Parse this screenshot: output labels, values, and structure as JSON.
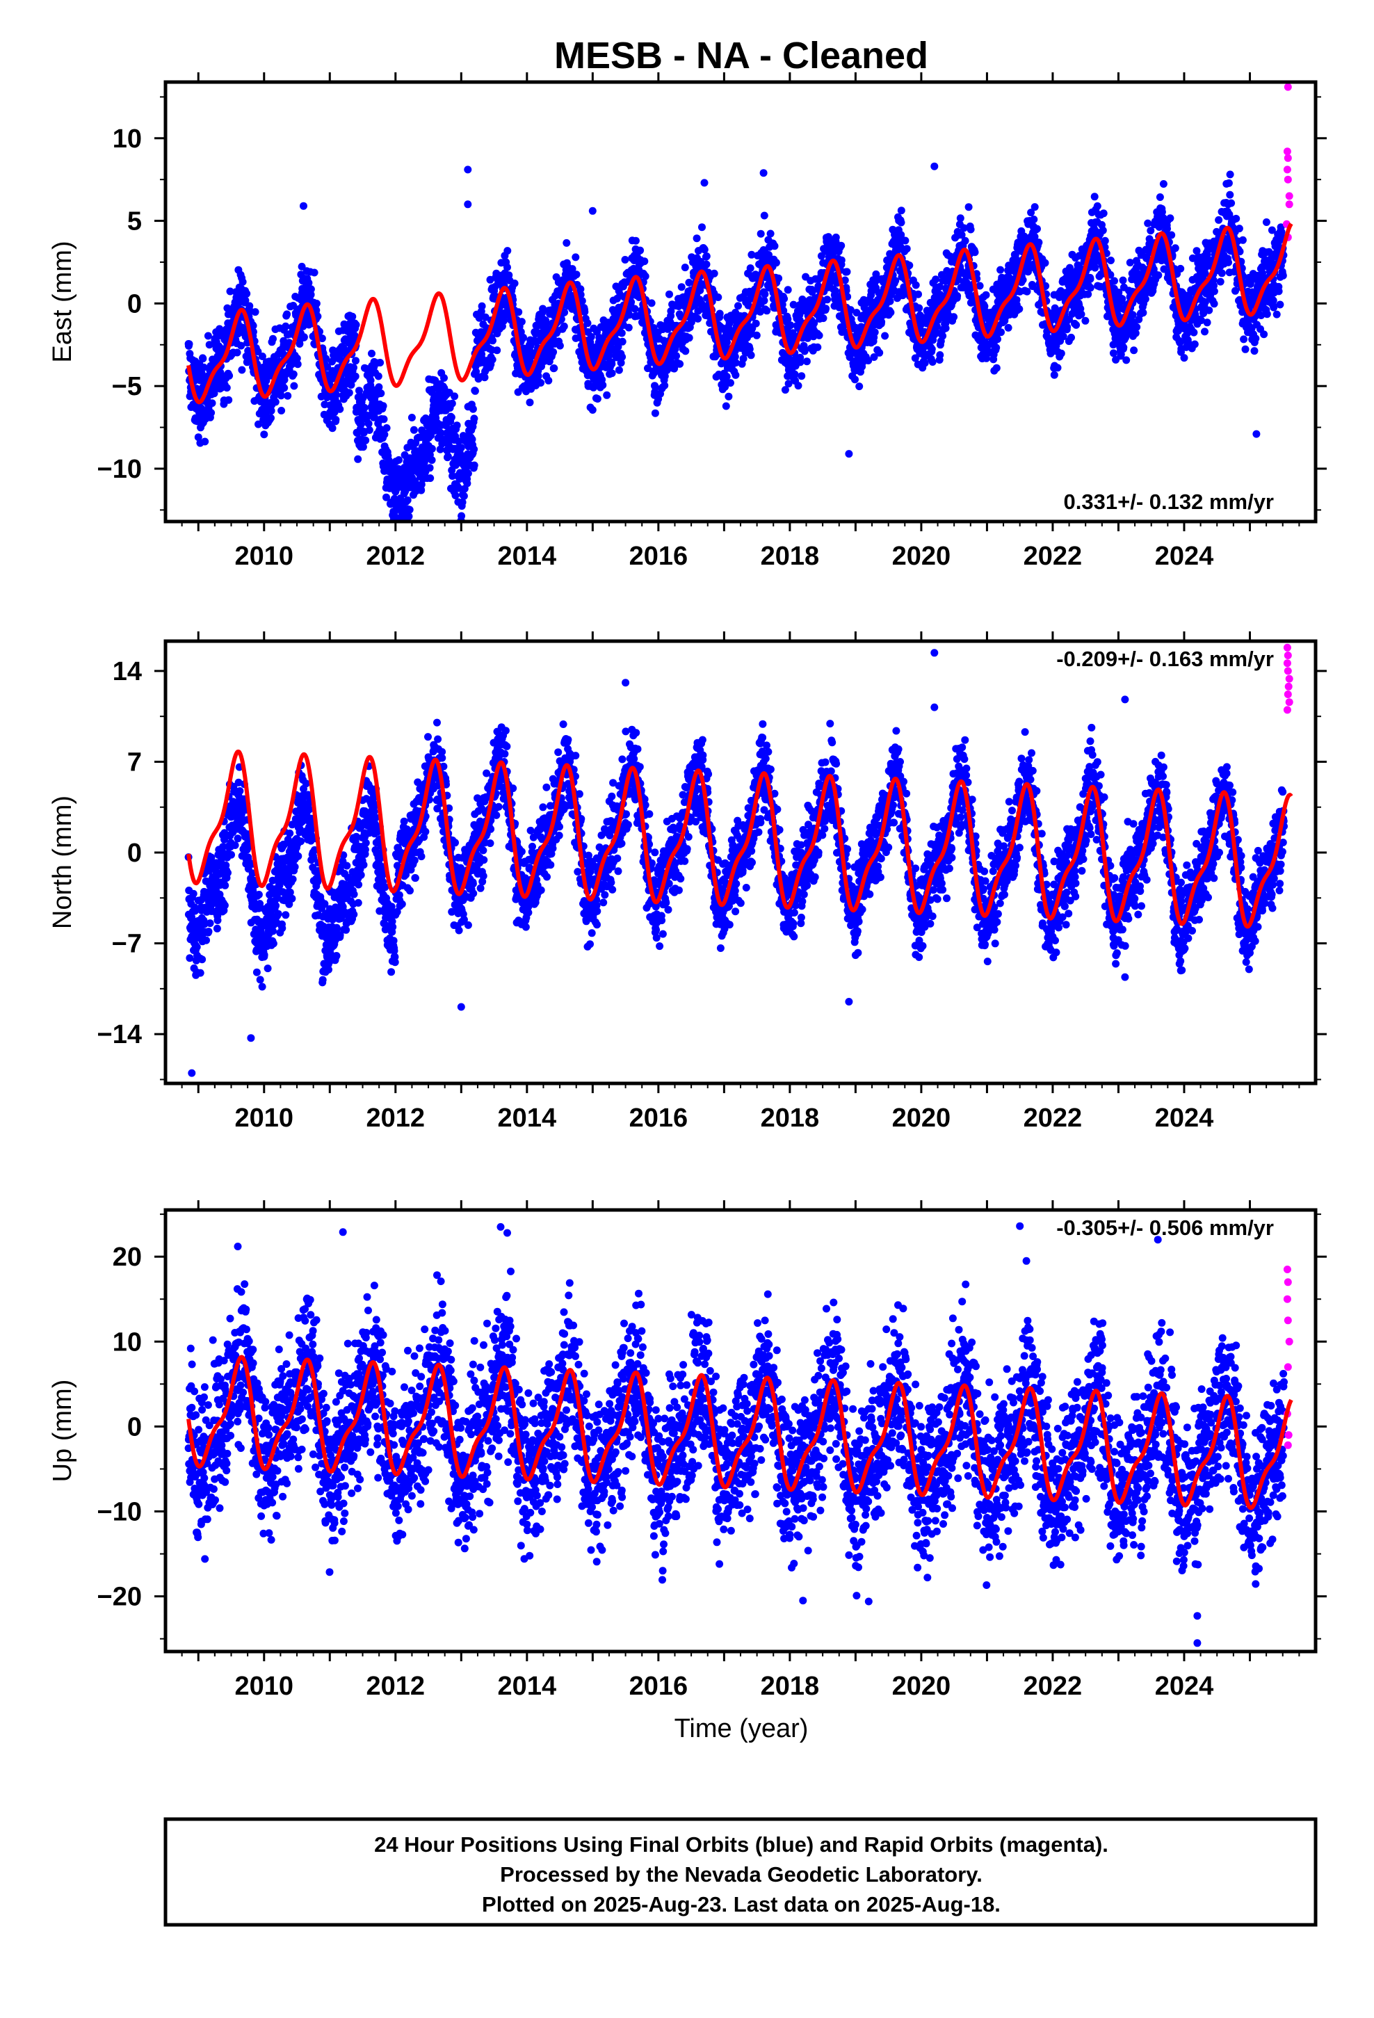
{
  "title": "MESB  - NA - Cleaned",
  "xlabel": "Time (year)",
  "colors": {
    "final": "#0000ff",
    "rapid": "#ff00ff",
    "model": "#ff0000",
    "axes": "#000000"
  },
  "chart_data": [
    {
      "type": "scatter",
      "name": "east",
      "ylabel": "East (mm)",
      "rate": "0.331+/- 0.132 mm/yr",
      "rate_position": "bottom-right",
      "xlim": [
        2008.5,
        2026.0
      ],
      "ylim": [
        -13.2,
        13.4
      ],
      "xticks": [
        2010,
        2012,
        2014,
        2016,
        2018,
        2020,
        2022,
        2024
      ],
      "yticks": [
        -10,
        -5,
        0,
        5,
        10
      ],
      "grid": false,
      "start_year": 2008.85,
      "end_year": 2025.63,
      "rapid_start_year": 2025.52,
      "series": [
        {
          "name": "Final Orbits",
          "color": "#0000ff"
        },
        {
          "name": "Rapid Orbits",
          "color": "#ff00ff"
        },
        {
          "name": "Model",
          "color": "#ff0000"
        }
      ],
      "model": {
        "trend": 0.331,
        "trend_start": -3.5,
        "amp": 2.3,
        "phase_peak": 0.6
      },
      "outliers": [
        {
          "x": 2013.1,
          "y": 8.1
        },
        {
          "x": 2013.1,
          "y": 6.0
        },
        {
          "x": 2020.2,
          "y": 8.3
        },
        {
          "x": 2018.9,
          "y": -9.1
        },
        {
          "x": 2025.1,
          "y": -7.9
        },
        {
          "x": 2010.6,
          "y": 5.9
        },
        {
          "x": 2017.6,
          "y": 7.9
        },
        {
          "x": 2016.7,
          "y": 7.3
        },
        {
          "x": 2015.0,
          "y": 5.6
        }
      ],
      "rapid_points": [
        {
          "x": 2025.58,
          "y": 13.1
        },
        {
          "x": 2025.57,
          "y": 9.2
        },
        {
          "x": 2025.58,
          "y": 8.8
        },
        {
          "x": 2025.57,
          "y": 8.1
        },
        {
          "x": 2025.58,
          "y": 7.5
        },
        {
          "x": 2025.6,
          "y": 6.5
        },
        {
          "x": 2025.6,
          "y": 6.0
        },
        {
          "x": 2025.56,
          "y": 4.8
        },
        {
          "x": 2025.58,
          "y": 4.0
        }
      ]
    },
    {
      "type": "scatter",
      "name": "north",
      "ylabel": "North (mm)",
      "rate": "-0.209+/- 0.163 mm/yr",
      "rate_position": "top-right",
      "xlim": [
        2008.5,
        2026.0
      ],
      "ylim": [
        -17.8,
        16.3
      ],
      "xticks": [
        2010,
        2012,
        2014,
        2016,
        2018,
        2020,
        2022,
        2024
      ],
      "yticks": [
        -14,
        -7,
        0,
        7,
        14
      ],
      "grid": false,
      "start_year": 2008.85,
      "end_year": 2025.63,
      "rapid_start_year": 2025.52,
      "series": [
        {
          "name": "Final Orbits",
          "color": "#0000ff"
        },
        {
          "name": "Rapid Orbits",
          "color": "#ff00ff"
        },
        {
          "name": "Model",
          "color": "#ff0000"
        }
      ],
      "model": {
        "trend": -0.209,
        "trend_start": 2.5,
        "amp": 4.4,
        "phase_peak": 0.55
      },
      "outliers": [
        {
          "x": 2008.9,
          "y": -17.0
        },
        {
          "x": 2018.9,
          "y": -11.5
        },
        {
          "x": 2020.2,
          "y": 15.4
        },
        {
          "x": 2020.2,
          "y": 11.2
        },
        {
          "x": 2023.1,
          "y": 11.8
        },
        {
          "x": 2013.0,
          "y": -11.9
        },
        {
          "x": 2009.8,
          "y": -14.3
        },
        {
          "x": 2015.5,
          "y": 13.1
        },
        {
          "x": 2023.1,
          "y": -9.6
        }
      ],
      "rapid_points": [
        {
          "x": 2025.57,
          "y": 15.8
        },
        {
          "x": 2025.58,
          "y": 15.2
        },
        {
          "x": 2025.57,
          "y": 14.6
        },
        {
          "x": 2025.58,
          "y": 14.0
        },
        {
          "x": 2025.6,
          "y": 13.4
        },
        {
          "x": 2025.59,
          "y": 12.8
        },
        {
          "x": 2025.58,
          "y": 12.2
        },
        {
          "x": 2025.6,
          "y": 11.6
        },
        {
          "x": 2025.57,
          "y": 11.0
        }
      ]
    },
    {
      "type": "scatter",
      "name": "up",
      "ylabel": "Up (mm)",
      "rate": "-0.305+/- 0.506 mm/yr",
      "rate_position": "top-right",
      "xlim": [
        2008.5,
        2026.0
      ],
      "ylim": [
        -26.5,
        25.5
      ],
      "xticks": [
        2010,
        2012,
        2014,
        2016,
        2018,
        2020,
        2022,
        2024
      ],
      "yticks": [
        -20,
        -10,
        0,
        10,
        20
      ],
      "grid": false,
      "start_year": 2008.85,
      "end_year": 2025.63,
      "rapid_start_year": 2025.52,
      "series": [
        {
          "name": "Final Orbits",
          "color": "#0000ff"
        },
        {
          "name": "Rapid Orbits",
          "color": "#ff00ff"
        },
        {
          "name": "Model",
          "color": "#ff0000"
        }
      ],
      "model": {
        "trend": -0.305,
        "trend_start": 1.5,
        "amp": 5.6,
        "phase_peak": 0.6
      },
      "outliers": [
        {
          "x": 2013.6,
          "y": 23.5
        },
        {
          "x": 2013.7,
          "y": 22.8
        },
        {
          "x": 2021.6,
          "y": 19.5
        },
        {
          "x": 2021.5,
          "y": 23.6
        },
        {
          "x": 2024.2,
          "y": -22.3
        },
        {
          "x": 2024.2,
          "y": -25.5
        },
        {
          "x": 2018.2,
          "y": -20.5
        },
        {
          "x": 2019.2,
          "y": -20.6
        },
        {
          "x": 2011.2,
          "y": 22.9
        },
        {
          "x": 2009.6,
          "y": 21.2
        },
        {
          "x": 2023.6,
          "y": 22.0
        },
        {
          "x": 2009.1,
          "y": -15.6
        }
      ],
      "rapid_points": [
        {
          "x": 2025.57,
          "y": 18.5
        },
        {
          "x": 2025.58,
          "y": 17.0
        },
        {
          "x": 2025.57,
          "y": 15.0
        },
        {
          "x": 2025.58,
          "y": 12.5
        },
        {
          "x": 2025.6,
          "y": 10.0
        },
        {
          "x": 2025.58,
          "y": 7.0
        },
        {
          "x": 2025.57,
          "y": 1.5
        },
        {
          "x": 2025.59,
          "y": -1.0
        },
        {
          "x": 2025.58,
          "y": -2.2
        }
      ]
    }
  ],
  "footer": {
    "line1": "24 Hour Positions Using Final Orbits (blue) and Rapid Orbits (magenta).",
    "line2": "Processed by the Nevada Geodetic Laboratory.",
    "line3": "Plotted on 2025-Aug-23. Last data on 2025-Aug-18."
  }
}
